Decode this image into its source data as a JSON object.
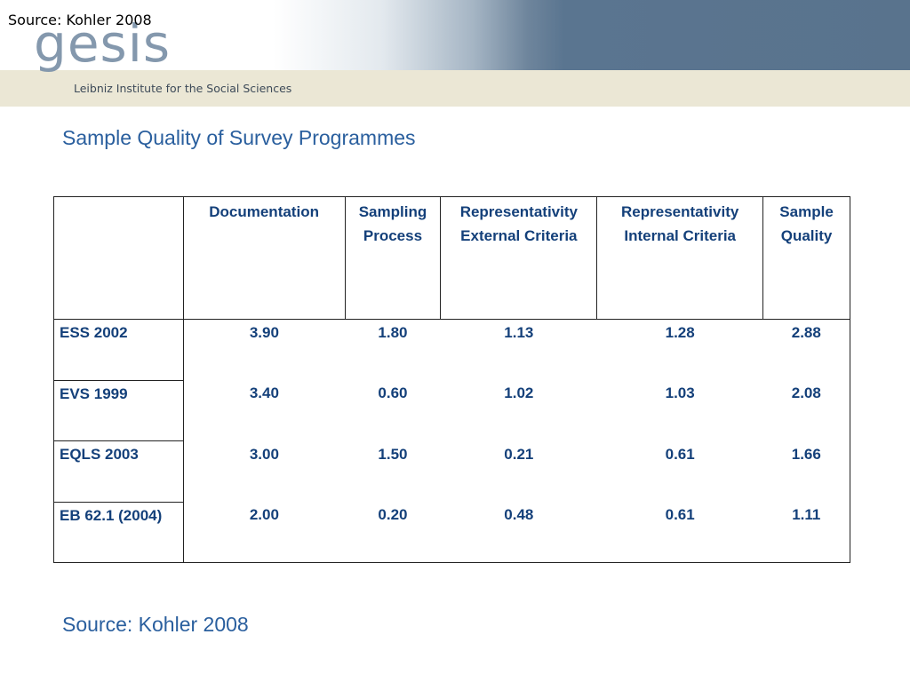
{
  "header": {
    "source_overlay": "Source: Kohler 2008",
    "logo_text": "gesis",
    "institute": "Leibniz Institute for the Social Sciences"
  },
  "title": "Sample Quality of Survey Programmes",
  "table": {
    "columns": [
      "",
      "Documentation",
      "Sampling Process",
      "Representativity External Criteria",
      "Representativity Internal Criteria",
      "Sample Quality"
    ],
    "rows": [
      {
        "label": "ESS 2002",
        "values": [
          "3.90",
          "1.80",
          "1.13",
          "1.28",
          "2.88"
        ]
      },
      {
        "label": "EVS 1999",
        "values": [
          "3.40",
          "0.60",
          "1.02",
          "1.03",
          "2.08"
        ]
      },
      {
        "label": "EQLS 2003",
        "values": [
          "3.00",
          "1.50",
          "0.21",
          "0.61",
          "1.66"
        ]
      },
      {
        "label": "EB 62.1 (2004)",
        "values": [
          "2.00",
          "0.20",
          "0.48",
          "0.61",
          "1.11"
        ]
      }
    ]
  },
  "footer": {
    "source": "Source: Kohler 2008"
  }
}
